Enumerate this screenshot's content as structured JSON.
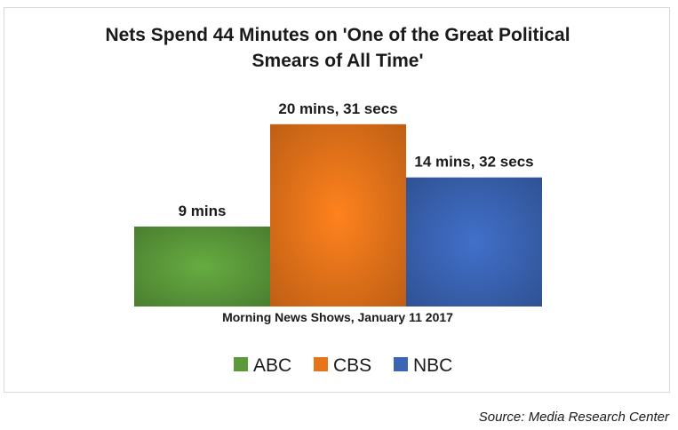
{
  "chart_data": {
    "type": "bar",
    "title_lines": [
      "Nets Spend 44 Minutes on 'One of the Great Political",
      "Smears of All Time'"
    ],
    "xlabel": "Morning News Shows, January 11 2017",
    "ylabel": "",
    "ylim": [
      0,
      22
    ],
    "grid": false,
    "legend_position": "bottom",
    "series": [
      {
        "name": "ABC",
        "value_minutes": 9,
        "data_label": "9 mins",
        "color": "#5b9a3a"
      },
      {
        "name": "CBS",
        "value_minutes": 20.52,
        "data_label": "20 mins, 31 secs",
        "color": "#e8741a"
      },
      {
        "name": "NBC",
        "value_minutes": 14.53,
        "data_label": "14 mins, 32 secs",
        "color": "#3a64b4"
      }
    ]
  },
  "source": "Source: Media Research Center"
}
